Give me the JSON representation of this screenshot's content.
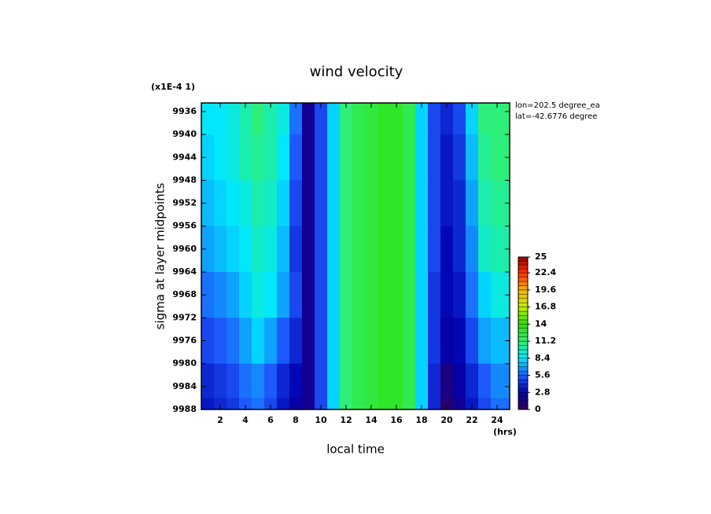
{
  "chart_data": {
    "type": "contour",
    "title": "wind velocity",
    "scale_note": "(x1E-4 1)",
    "info": [
      "lon=202.5 degree_ea",
      "lat=-42.6776 degree"
    ],
    "x_label": "local time",
    "x_unit": "(hrs)",
    "y_label": "sigma at layer midpoints",
    "x": [
      1,
      2,
      3,
      4,
      5,
      6,
      7,
      8,
      9,
      10,
      11,
      12,
      13,
      14,
      15,
      16,
      17,
      18,
      19,
      20,
      21,
      22,
      23,
      24
    ],
    "y": [
      9936,
      9944,
      9952,
      9960,
      9968,
      9976,
      9984,
      9988
    ],
    "z": [
      [
        8.5,
        8.5,
        9,
        10,
        11,
        10,
        9,
        6,
        2,
        5,
        8,
        11,
        12,
        12.5,
        13,
        13,
        12,
        8,
        5,
        4,
        5,
        8,
        11,
        11
      ],
      [
        8,
        8.5,
        9,
        10,
        10.5,
        10,
        8.5,
        5.5,
        2,
        5,
        8,
        11,
        12,
        12.5,
        13,
        13,
        12,
        8,
        5,
        3.5,
        4.5,
        7.5,
        10.5,
        11
      ],
      [
        7.5,
        8,
        8.5,
        9,
        10,
        9.5,
        8,
        5,
        2,
        5,
        8,
        11,
        12,
        12.5,
        13,
        13,
        12,
        8,
        5,
        3.5,
        4,
        7,
        10,
        10.5
      ],
      [
        7,
        7.5,
        8,
        8.5,
        9.5,
        9,
        7.5,
        4.5,
        2,
        5,
        8,
        11,
        12,
        12.5,
        13,
        13,
        12,
        8,
        5,
        3,
        4,
        6.5,
        9.5,
        10
      ],
      [
        6,
        6.5,
        7,
        8,
        9,
        8.5,
        7,
        5,
        2,
        5,
        8,
        11,
        12,
        12.5,
        13,
        13,
        12,
        8,
        4.5,
        3,
        3.5,
        6,
        8,
        9
      ],
      [
        5,
        5.5,
        6,
        7,
        8,
        7,
        5.5,
        4,
        2,
        5,
        8,
        11,
        12,
        12.5,
        13,
        13,
        12,
        8,
        4.5,
        2.5,
        3,
        5,
        7,
        7.5
      ],
      [
        4,
        4.5,
        5,
        6,
        6.5,
        5.5,
        4,
        3,
        2,
        5,
        8,
        11,
        12,
        12.5,
        13,
        13,
        12,
        8,
        4,
        1.5,
        2.5,
        4,
        5.5,
        6.5
      ],
      [
        3.5,
        4,
        4.5,
        5.5,
        6,
        5,
        3.5,
        2.5,
        2,
        5,
        8,
        11,
        12,
        12.5,
        13,
        13,
        12,
        8,
        4,
        1,
        2,
        3.5,
        5,
        6
      ]
    ],
    "xlim": [
      0.5,
      25
    ],
    "ylim": [
      9934.5,
      9988
    ],
    "xticks": [
      2,
      4,
      6,
      8,
      10,
      12,
      14,
      16,
      18,
      20,
      22,
      24
    ],
    "yticks": [
      9936,
      9940,
      9944,
      9948,
      9952,
      9956,
      9960,
      9964,
      9968,
      9972,
      9976,
      9980,
      9984,
      9988
    ],
    "y_inverted": true,
    "cbar_ticks": [
      0,
      2.8,
      5.6,
      8.4,
      11.2,
      14,
      16.8,
      19.6,
      22.4,
      25
    ],
    "colormap": [
      "#3a0050",
      "#0000b0",
      "#1e5cff",
      "#00e8ff",
      "#30f070",
      "#30e000",
      "#c0f000",
      "#ffb000",
      "#ff3000",
      "#a00000"
    ]
  }
}
